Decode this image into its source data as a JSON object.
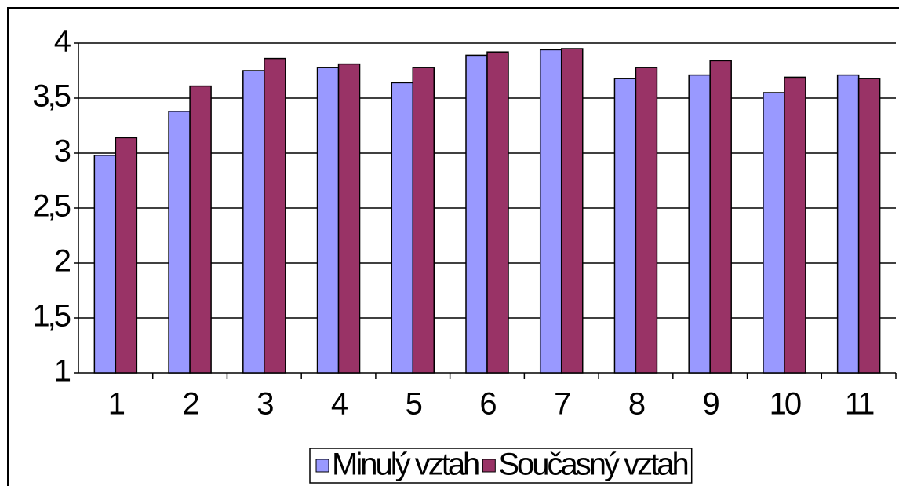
{
  "chart_data": {
    "type": "bar",
    "categories": [
      "1",
      "2",
      "3",
      "4",
      "5",
      "6",
      "7",
      "8",
      "9",
      "10",
      "11"
    ],
    "series": [
      {
        "name": "Minulý vztah",
        "color": "#9999ff",
        "values": [
          2.98,
          3.38,
          3.75,
          3.78,
          3.64,
          3.89,
          3.94,
          3.68,
          3.71,
          3.55,
          3.71
        ]
      },
      {
        "name": "Současný vztah",
        "color": "#993366",
        "values": [
          3.14,
          3.61,
          3.86,
          3.81,
          3.78,
          3.92,
          3.95,
          3.78,
          3.84,
          3.69,
          3.68
        ]
      }
    ],
    "ylim": [
      1,
      4
    ],
    "yticks": [
      1,
      {
        "value": 1.5,
        "label": "1,5"
      },
      2,
      {
        "value": 2.5,
        "label": "2,5"
      },
      3,
      {
        "value": 3.5,
        "label": "3,5"
      },
      4
    ],
    "grid": true,
    "legend": "bottom"
  }
}
